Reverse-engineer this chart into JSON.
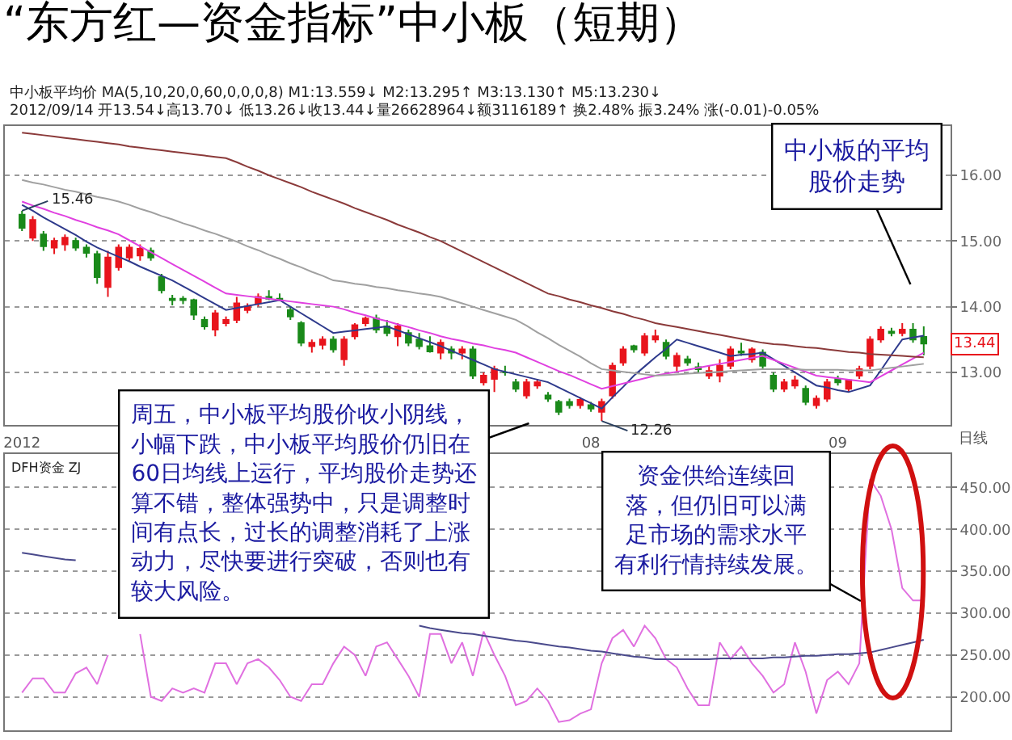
{
  "chart_data": [
    {
      "type": "candlestick",
      "title": "“东方红—资金指标”中小板（短期）",
      "categories": [
        "2012",
        null,
        null,
        null,
        null,
        null,
        null,
        null,
        null,
        null,
        null,
        null,
        null,
        null,
        null,
        null,
        null,
        null,
        null,
        null,
        null,
        null,
        null,
        null,
        null,
        null,
        null,
        null,
        null,
        null,
        null,
        null,
        null,
        null,
        null,
        null,
        null,
        null,
        null,
        null,
        null,
        null,
        null,
        null,
        null,
        null,
        null,
        null,
        null,
        null,
        null,
        null,
        null,
        "08",
        null,
        null,
        null,
        null,
        null,
        null,
        null,
        null,
        null,
        null,
        null,
        null,
        null,
        null,
        null,
        null,
        null,
        null,
        null,
        null,
        null,
        null,
        "09",
        null,
        null,
        null,
        null,
        null,
        null,
        null,
        null
      ],
      "ohlc": [
        [
          15.4,
          15.46,
          15.15,
          15.2
        ],
        [
          15.05,
          15.38,
          15.0,
          15.32
        ],
        [
          15.1,
          15.15,
          14.85,
          14.92
        ],
        [
          14.9,
          15.05,
          14.8,
          15.0
        ],
        [
          14.95,
          15.1,
          14.85,
          15.05
        ],
        [
          15.0,
          15.05,
          14.85,
          14.9
        ],
        [
          14.9,
          14.95,
          14.75,
          14.82
        ],
        [
          14.8,
          14.85,
          14.35,
          14.45
        ],
        [
          14.3,
          14.85,
          14.15,
          14.75
        ],
        [
          14.6,
          14.95,
          14.55,
          14.9
        ],
        [
          14.75,
          14.95,
          14.7,
          14.9
        ],
        [
          14.78,
          14.95,
          14.7,
          14.88
        ],
        [
          14.85,
          14.9,
          14.7,
          14.75
        ],
        [
          14.45,
          14.5,
          14.2,
          14.25
        ],
        [
          14.12,
          14.18,
          14.02,
          14.1
        ],
        [
          14.12,
          14.16,
          14.04,
          14.1
        ],
        [
          14.1,
          14.12,
          13.8,
          13.88
        ],
        [
          13.8,
          13.85,
          13.65,
          13.7
        ],
        [
          13.65,
          13.95,
          13.55,
          13.9
        ],
        [
          13.75,
          13.85,
          13.7,
          13.8
        ],
        [
          13.8,
          14.15,
          13.75,
          14.05
        ],
        [
          13.95,
          14.05,
          13.9,
          14.0
        ],
        [
          14.05,
          14.2,
          14.0,
          14.15
        ],
        [
          14.15,
          14.25,
          14.1,
          14.12
        ],
        [
          14.12,
          14.2,
          14.08,
          14.1
        ],
        [
          13.95,
          14.0,
          13.8,
          13.85
        ],
        [
          13.75,
          13.78,
          13.4,
          13.45
        ],
        [
          13.4,
          13.5,
          13.3,
          13.45
        ],
        [
          13.42,
          13.55,
          13.35,
          13.5
        ],
        [
          13.5,
          13.55,
          13.3,
          13.35
        ],
        [
          13.2,
          13.55,
          13.1,
          13.5
        ],
        [
          13.55,
          13.75,
          13.5,
          13.72
        ],
        [
          13.75,
          13.85,
          13.7,
          13.82
        ],
        [
          13.82,
          13.88,
          13.6,
          13.65
        ],
        [
          13.7,
          13.8,
          13.55,
          13.6
        ],
        [
          13.55,
          13.75,
          13.4,
          13.7
        ],
        [
          13.6,
          13.65,
          13.4,
          13.45
        ],
        [
          13.5,
          13.6,
          13.35,
          13.4
        ],
        [
          13.4,
          13.55,
          13.3,
          13.32
        ],
        [
          13.3,
          13.5,
          13.2,
          13.45
        ],
        [
          13.35,
          13.4,
          13.2,
          13.3
        ],
        [
          13.3,
          13.4,
          13.2,
          13.35
        ],
        [
          13.35,
          13.4,
          12.9,
          12.95
        ],
        [
          12.85,
          13.0,
          12.8,
          12.95
        ],
        [
          12.9,
          13.1,
          12.7,
          13.05
        ],
        [
          13.0,
          13.1,
          12.95,
          13.0
        ],
        [
          12.85,
          12.9,
          12.7,
          12.75
        ],
        [
          12.65,
          12.9,
          12.6,
          12.85
        ],
        [
          12.8,
          12.9,
          12.75,
          12.85
        ],
        [
          12.65,
          12.7,
          12.55,
          12.6
        ],
        [
          12.55,
          12.58,
          12.35,
          12.4
        ],
        [
          12.55,
          12.6,
          12.45,
          12.5
        ],
        [
          12.5,
          12.62,
          12.45,
          12.58
        ],
        [
          12.5,
          12.55,
          12.4,
          12.45
        ],
        [
          12.4,
          12.6,
          12.26,
          12.55
        ],
        [
          12.65,
          13.15,
          12.6,
          13.1
        ],
        [
          13.15,
          13.4,
          13.1,
          13.35
        ],
        [
          13.4,
          13.42,
          13.3,
          13.35
        ],
        [
          13.3,
          13.6,
          13.25,
          13.55
        ],
        [
          13.5,
          13.65,
          13.45,
          13.55
        ],
        [
          13.45,
          13.5,
          13.2,
          13.25
        ],
        [
          13.1,
          13.3,
          13.0,
          13.25
        ],
        [
          13.2,
          13.25,
          13.1,
          13.15
        ],
        [
          13.08,
          13.15,
          13.0,
          13.05
        ],
        [
          12.95,
          13.1,
          12.9,
          13.02
        ],
        [
          12.95,
          13.2,
          12.85,
          13.1
        ],
        [
          13.1,
          13.4,
          13.05,
          13.35
        ],
        [
          13.32,
          13.45,
          13.25,
          13.3
        ],
        [
          13.2,
          13.38,
          13.15,
          13.35
        ],
        [
          13.3,
          13.35,
          13.05,
          13.1
        ],
        [
          12.95,
          13.0,
          12.7,
          12.75
        ],
        [
          12.75,
          12.9,
          12.7,
          12.85
        ],
        [
          12.8,
          12.95,
          12.75,
          12.88
        ],
        [
          12.75,
          12.8,
          12.5,
          12.55
        ],
        [
          12.5,
          12.65,
          12.45,
          12.6
        ],
        [
          12.6,
          12.9,
          12.55,
          12.85
        ],
        [
          12.9,
          12.95,
          12.8,
          12.85
        ],
        [
          12.75,
          12.9,
          12.7,
          12.88
        ],
        [
          12.95,
          13.1,
          12.9,
          13.05
        ],
        [
          13.1,
          13.55,
          13.05,
          13.5
        ],
        [
          13.5,
          13.7,
          13.45,
          13.65
        ],
        [
          13.62,
          13.68,
          13.55,
          13.6
        ],
        [
          13.6,
          13.75,
          13.55,
          13.65
        ],
        [
          13.65,
          13.75,
          13.45,
          13.5
        ],
        [
          13.54,
          13.7,
          13.26,
          13.44
        ]
      ],
      "series": [
        {
          "type": "line",
          "color": "#2e3a8c",
          "values": [
            15.55,
            15.46,
            15.36,
            15.27,
            15.18,
            15.09,
            14.99,
            14.9,
            14.83,
            14.76,
            14.69,
            14.61,
            14.54,
            14.47,
            14.4,
            14.31,
            14.22,
            14.13,
            14.04,
            13.95,
            13.98,
            14.01,
            14.04,
            14.07,
            14.1,
            14.0,
            13.9,
            13.8,
            13.7,
            13.6,
            13.62,
            13.64,
            13.66,
            13.68,
            13.7,
            13.64,
            13.58,
            13.52,
            13.46,
            13.4,
            13.33,
            13.26,
            13.19,
            13.12,
            13.05,
            13.01,
            12.97,
            12.93,
            12.89,
            12.85,
            12.77,
            12.69,
            12.61,
            12.53,
            12.45,
            12.62,
            12.78,
            12.95,
            13.09,
            13.23,
            13.36,
            13.5,
            13.45,
            13.4,
            13.35,
            13.3,
            13.25,
            13.27,
            13.28,
            13.3,
            13.2,
            13.1,
            13.0,
            12.9,
            12.8,
            12.77,
            12.73,
            12.7,
            12.75,
            12.8,
            13.03,
            13.27,
            13.5,
            13.53,
            13.56
          ]
        },
        {
          "type": "line",
          "color": "#e040e0",
          "values": [
            15.6,
            15.54,
            15.49,
            15.43,
            15.38,
            15.32,
            15.27,
            15.21,
            15.16,
            15.1,
            15.01,
            14.92,
            14.83,
            14.74,
            14.65,
            14.56,
            14.47,
            14.38,
            14.29,
            14.2,
            14.18,
            14.16,
            14.14,
            14.12,
            14.1,
            14.08,
            14.06,
            14.04,
            14.02,
            14.0,
            13.96,
            13.91,
            13.87,
            13.82,
            13.78,
            13.73,
            13.69,
            13.64,
            13.6,
            13.55,
            13.51,
            13.48,
            13.44,
            13.41,
            13.37,
            13.34,
            13.3,
            13.23,
            13.16,
            13.09,
            13.02,
            12.96,
            12.89,
            12.82,
            12.75,
            12.79,
            12.83,
            12.87,
            12.91,
            12.95,
            12.98,
            13.01,
            13.04,
            13.07,
            13.1,
            13.13,
            13.16,
            13.19,
            13.22,
            13.25,
            13.19,
            13.13,
            13.07,
            13.01,
            12.95,
            12.93,
            12.91,
            12.89,
            12.87,
            12.85,
            12.94,
            13.03,
            13.12,
            13.21,
            13.3
          ]
        },
        {
          "type": "line",
          "color": "#a0a0a0",
          "values": [
            15.93,
            15.89,
            15.86,
            15.82,
            15.78,
            15.75,
            15.71,
            15.67,
            15.64,
            15.6,
            15.55,
            15.49,
            15.44,
            15.38,
            15.33,
            15.27,
            15.22,
            15.16,
            15.11,
            15.05,
            14.99,
            14.92,
            14.86,
            14.79,
            14.73,
            14.66,
            14.6,
            14.53,
            14.47,
            14.4,
            14.38,
            14.35,
            14.33,
            14.3,
            14.28,
            14.25,
            14.23,
            14.2,
            14.18,
            14.15,
            14.1,
            14.05,
            14.0,
            13.95,
            13.9,
            13.85,
            13.8,
            13.71,
            13.61,
            13.52,
            13.42,
            13.33,
            13.24,
            13.14,
            13.05,
            13.03,
            13.01,
            12.99,
            12.97,
            12.95,
            12.96,
            12.97,
            12.98,
            12.99,
            13.0,
            13.01,
            13.02,
            13.03,
            13.04,
            13.05,
            13.05,
            13.05,
            13.05,
            13.04,
            13.04,
            13.04,
            13.04,
            13.03,
            13.03,
            13.03,
            13.05,
            13.07,
            13.09,
            13.11,
            13.13
          ]
        },
        {
          "type": "line",
          "color": "#8b3a3a",
          "values": [
            16.65,
            16.63,
            16.61,
            16.59,
            16.57,
            16.55,
            16.53,
            16.51,
            16.49,
            16.47,
            16.44,
            16.42,
            16.4,
            16.38,
            16.36,
            16.34,
            16.32,
            16.3,
            16.28,
            16.26,
            16.2,
            16.13,
            16.07,
            16.0,
            15.94,
            15.88,
            15.82,
            15.75,
            15.69,
            15.63,
            15.57,
            15.5,
            15.44,
            15.38,
            15.32,
            15.25,
            15.19,
            15.13,
            15.06,
            15.0,
            14.92,
            14.84,
            14.76,
            14.68,
            14.6,
            14.52,
            14.44,
            14.36,
            14.28,
            14.2,
            14.16,
            14.11,
            14.07,
            14.02,
            13.98,
            13.93,
            13.89,
            13.84,
            13.8,
            13.75,
            13.72,
            13.69,
            13.66,
            13.63,
            13.6,
            13.57,
            13.54,
            13.51,
            13.48,
            13.45,
            13.43,
            13.42,
            13.4,
            13.38,
            13.37,
            13.35,
            13.33,
            13.31,
            13.3,
            13.28,
            13.27,
            13.26,
            13.25,
            13.24,
            13.23
          ]
        }
      ],
      "ylim": [
        12.2,
        16.75
      ],
      "yticks": [
        {
          "value": 13,
          "label": "13.00"
        },
        {
          "value": 14,
          "label": "14.00"
        },
        {
          "value": 15,
          "label": "15.00"
        },
        {
          "value": 16,
          "label": "16.00"
        }
      ],
      "grid": "y",
      "annotations": [
        "中小板平均价 MA(5,10,20,0,60,0,0,0,8) M1:13.559↓ M2:13.295↑ M3:13.130↑ M5:13.230↓",
        "2012/09/14 开13.54↓高13.70↓ 低13.26↓收13.44↓量26628964↓额3116189↑ 换2.48% 振3.24% 涨(-0.01)-0.05%",
        "15.46",
        "12.26",
        {
          "text": "13.44",
          "y": 13.44
        },
        "日线",
        "中小板的平均股价走势",
        "周五，中小板平均股价收小阴线，小幅下跌，中小板平均股价仍旧在60日均线上运行，平均股价走势还算不错，整体强势中，只是调整时间有点长，过长的调整消耗了上涨动力，尽快要进行突破，否则也有较大风险。"
      ]
    },
    {
      "type": "line",
      "categories": [
        "2012",
        null,
        null,
        null,
        null,
        null,
        null,
        null,
        null,
        null,
        null,
        null,
        null,
        null,
        null,
        null,
        null,
        null,
        null,
        null,
        null,
        null,
        null,
        null,
        null,
        null,
        null,
        null,
        null,
        null,
        null,
        null,
        null,
        null,
        null,
        null,
        null,
        null,
        null,
        null,
        null,
        null,
        null,
        null,
        null,
        null,
        null,
        null,
        null,
        null,
        null,
        null,
        null,
        "08",
        null,
        null,
        null,
        null,
        null,
        null,
        null,
        null,
        null,
        null,
        null,
        null,
        null,
        null,
        null,
        null,
        null,
        null,
        null,
        null,
        null,
        null,
        "09",
        null,
        null,
        null,
        null,
        null,
        null,
        null,
        null
      ],
      "series": [
        {
          "color": "#e070e0",
          "values": [
            205,
            222,
            222,
            205,
            205,
            228,
            235,
            215,
            250,
            null,
            null,
            275,
            200,
            195,
            210,
            205,
            210,
            205,
            240,
            240,
            215,
            240,
            245,
            235,
            220,
            200,
            195,
            215,
            215,
            240,
            260,
            250,
            225,
            260,
            265,
            245,
            225,
            200,
            275,
            275,
            240,
            265,
            225,
            278,
            250,
            225,
            190,
            195,
            210,
            195,
            170,
            172,
            180,
            185,
            240,
            270,
            280,
            260,
            285,
            270,
            245,
            235,
            210,
            190,
            190,
            265,
            245,
            260,
            240,
            225,
            205,
            215,
            265,
            230,
            180,
            220,
            230,
            215,
            240,
            460,
            440,
            400,
            330,
            315,
            315
          ]
        },
        {
          "color": "#4a4a8c",
          "values": [
            372,
            370,
            368,
            366,
            364,
            363,
            null,
            null,
            null,
            null,
            null,
            null,
            null,
            null,
            null,
            null,
            null,
            null,
            null,
            null,
            null,
            null,
            null,
            null,
            null,
            null,
            null,
            null,
            null,
            null,
            null,
            null,
            null,
            null,
            null,
            null,
            null,
            285,
            282,
            280,
            278,
            276,
            275,
            273,
            271,
            269,
            267,
            266,
            264,
            262,
            260,
            259,
            257,
            255,
            254,
            252,
            250,
            248,
            247,
            245,
            245,
            245,
            245,
            245,
            245,
            246,
            246,
            246,
            246,
            246,
            247,
            247,
            248,
            249,
            249,
            250,
            251,
            251,
            252,
            253,
            256,
            259,
            262,
            265,
            268
          ]
        }
      ],
      "ylim": [
        160,
        490
      ],
      "yticks": [
        {
          "value": 200,
          "label": "200.00"
        },
        {
          "value": 250,
          "label": "250.00"
        },
        {
          "value": 300,
          "label": "300.00"
        },
        {
          "value": 350,
          "label": "350.00"
        },
        {
          "value": 400,
          "label": "400.00"
        },
        {
          "value": 450,
          "label": "450.00"
        }
      ],
      "grid": "y",
      "tick_labels": "y",
      "annotations": [
        "DFH资金 ZJ",
        "资金供给连续回落，但仍旧可以满足市场的需求水平有利行情持续发展。"
      ]
    }
  ]
}
